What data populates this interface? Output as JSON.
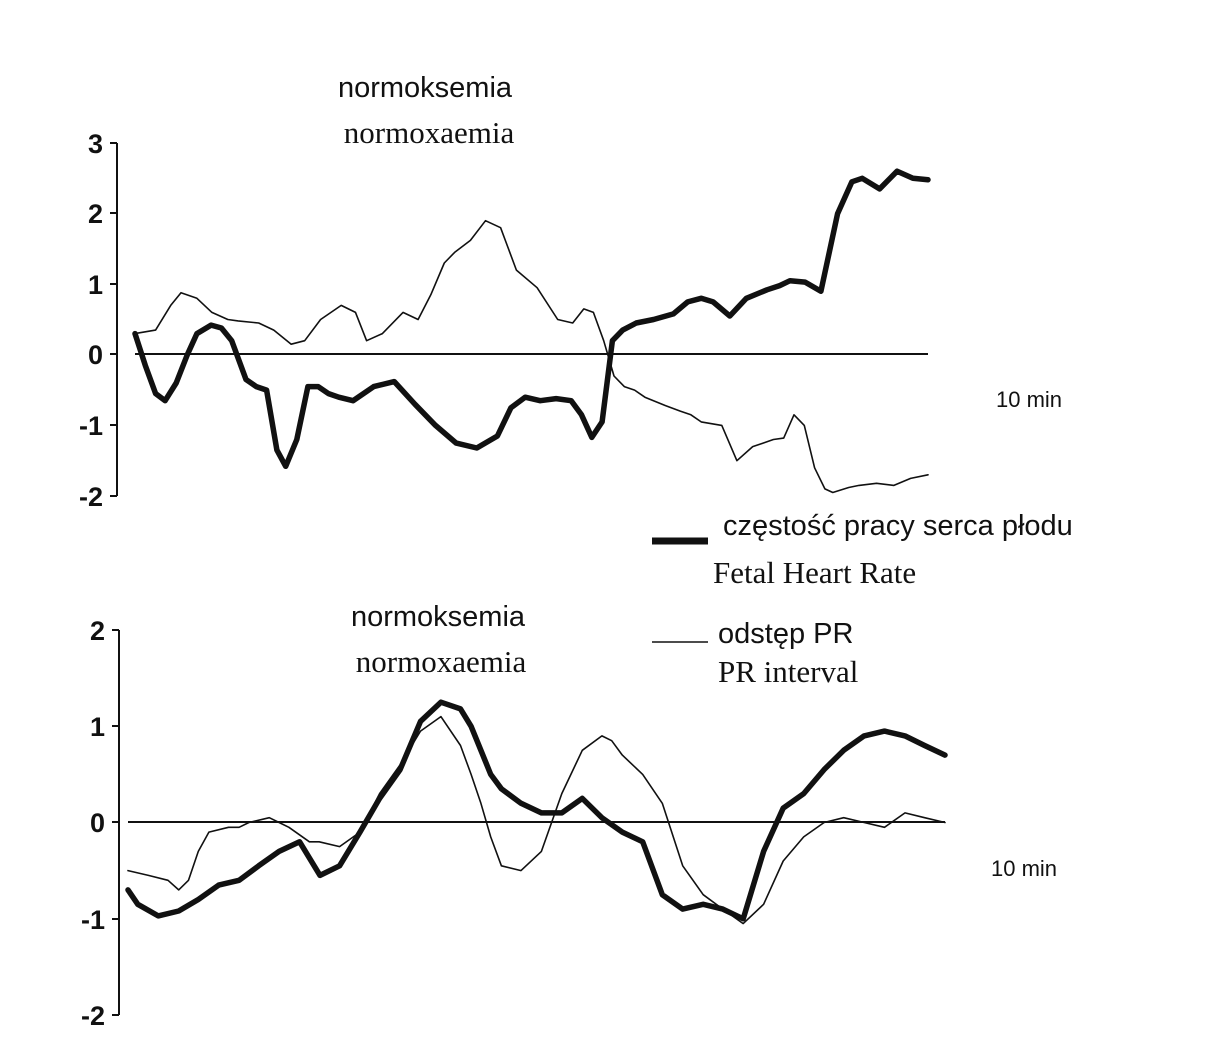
{
  "legend": {
    "fhr_pl": "częstość pracy serca płodu",
    "fhr_en": "Fetal Heart Rate",
    "pr_pl": "odstęp PR",
    "pr_en": "PR interval"
  },
  "chart_data": [
    {
      "type": "line",
      "title_pl": "normoksemia",
      "title_en": "normoxaemia",
      "duration_label": "10 min",
      "ylim": [
        -2,
        3
      ],
      "yticks": [
        "3",
        "2",
        "1",
        "0",
        "-1",
        "-2"
      ],
      "xlim": [
        0,
        10
      ],
      "series": [
        {
          "name": "Fetal Heart Rate",
          "style": "thick",
          "x": [
            0,
            0.13,
            0.26,
            0.38,
            0.52,
            0.66,
            0.78,
            0.96,
            1.09,
            1.22,
            1.4,
            1.53,
            1.66,
            1.79,
            1.9,
            2.04,
            2.18,
            2.31,
            2.44,
            2.57,
            2.75,
            3.01,
            3.27,
            3.53,
            3.79,
            4.05,
            4.31,
            4.57,
            4.74,
            4.92,
            5.11,
            5.31,
            5.5,
            5.63,
            5.76,
            5.89,
            6.02,
            6.15,
            6.32,
            6.54,
            6.79,
            6.97,
            7.14,
            7.29,
            7.5,
            7.71,
            7.97,
            8.13,
            8.26,
            8.45,
            8.65,
            8.86,
            9.04,
            9.17,
            9.39,
            9.61,
            9.81,
            10
          ],
          "values": [
            0.3,
            -0.15,
            -0.55,
            -0.65,
            -0.4,
            0.0,
            0.3,
            0.42,
            0.38,
            0.2,
            -0.35,
            -0.45,
            -0.5,
            -1.35,
            -1.58,
            -1.2,
            -0.45,
            -0.45,
            -0.55,
            -0.6,
            -0.65,
            -0.45,
            -0.38,
            -0.7,
            -1.0,
            -1.25,
            -1.32,
            -1.15,
            -0.75,
            -0.6,
            -0.65,
            -0.62,
            -0.65,
            -0.85,
            -1.17,
            -0.95,
            0.2,
            0.35,
            0.45,
            0.5,
            0.58,
            0.75,
            0.8,
            0.75,
            0.55,
            0.8,
            0.92,
            0.98,
            1.05,
            1.03,
            0.9,
            2.0,
            2.45,
            2.5,
            2.35,
            2.6,
            2.5,
            2.48
          ]
        },
        {
          "name": "PR interval",
          "style": "thin",
          "x": [
            0,
            0.26,
            0.45,
            0.58,
            0.78,
            0.97,
            1.17,
            1.3,
            1.56,
            1.75,
            1.97,
            2.14,
            2.34,
            2.6,
            2.78,
            2.92,
            3.12,
            3.38,
            3.57,
            3.73,
            3.9,
            4.03,
            4.23,
            4.42,
            4.61,
            4.81,
            5.07,
            5.33,
            5.52,
            5.66,
            5.78,
            5.91,
            6.04,
            6.17,
            6.3,
            6.43,
            6.69,
            6.88,
            7.01,
            7.14,
            7.4,
            7.59,
            7.79,
            7.92,
            8.05,
            8.18,
            8.31,
            8.44,
            8.57,
            8.7,
            8.8,
            9.0,
            9.13,
            9.35,
            9.57,
            9.78,
            10
          ],
          "values": [
            0.3,
            0.35,
            0.7,
            0.88,
            0.8,
            0.6,
            0.5,
            0.48,
            0.45,
            0.35,
            0.15,
            0.2,
            0.5,
            0.7,
            0.6,
            0.2,
            0.3,
            0.6,
            0.5,
            0.85,
            1.3,
            1.45,
            1.62,
            1.9,
            1.8,
            1.2,
            0.95,
            0.5,
            0.45,
            0.65,
            0.6,
            0.2,
            -0.3,
            -0.45,
            -0.5,
            -0.6,
            -0.72,
            -0.8,
            -0.85,
            -0.95,
            -1.0,
            -1.5,
            -1.3,
            -1.25,
            -1.2,
            -1.18,
            -0.85,
            -1.0,
            -1.6,
            -1.9,
            -1.95,
            -1.88,
            -1.85,
            -1.82,
            -1.85,
            -1.75,
            -1.7
          ]
        }
      ]
    },
    {
      "type": "line",
      "title_pl": "normoksemia",
      "title_en": "normoxaemia",
      "duration_label": "10 min",
      "ylim": [
        -2,
        2
      ],
      "yticks": [
        "2",
        "1",
        "0",
        "-1",
        "-2"
      ],
      "xlim": [
        0,
        10
      ],
      "series": [
        {
          "name": "Fetal Heart Rate",
          "style": "thick",
          "x": [
            0,
            0.12,
            0.37,
            0.62,
            0.86,
            1.11,
            1.36,
            1.6,
            1.85,
            2.1,
            2.35,
            2.59,
            2.84,
            3.08,
            3.33,
            3.58,
            3.83,
            4.07,
            4.2,
            4.32,
            4.44,
            4.57,
            4.81,
            5.06,
            5.31,
            5.56,
            5.8,
            6.05,
            6.3,
            6.54,
            6.79,
            7.04,
            7.28,
            7.53,
            7.78,
            8.02,
            8.27,
            8.52,
            8.76,
            9.01,
            9.26,
            9.51,
            9.75,
            10
          ],
          "values": [
            -0.7,
            -0.85,
            -0.97,
            -0.92,
            -0.8,
            -0.65,
            -0.6,
            -0.45,
            -0.3,
            -0.2,
            -0.55,
            -0.45,
            -0.1,
            0.25,
            0.55,
            1.05,
            1.25,
            1.18,
            1.0,
            0.75,
            0.5,
            0.35,
            0.2,
            0.1,
            0.1,
            0.25,
            0.05,
            -0.1,
            -0.2,
            -0.75,
            -0.9,
            -0.85,
            -0.9,
            -1.0,
            -0.3,
            0.15,
            0.3,
            0.55,
            0.75,
            0.9,
            0.95,
            0.9,
            0.8,
            0.7
          ]
        },
        {
          "name": "PR interval",
          "style": "thin",
          "x": [
            0,
            0.25,
            0.49,
            0.62,
            0.74,
            0.86,
            0.99,
            1.23,
            1.36,
            1.48,
            1.73,
            1.85,
            1.97,
            2.22,
            2.34,
            2.59,
            2.84,
            3.08,
            3.33,
            3.58,
            3.83,
            4.07,
            4.2,
            4.32,
            4.44,
            4.57,
            4.81,
            5.06,
            5.31,
            5.56,
            5.8,
            5.92,
            6.05,
            6.3,
            6.54,
            6.79,
            7.04,
            7.28,
            7.53,
            7.78,
            8.02,
            8.27,
            8.52,
            8.76,
            9.01,
            9.26,
            9.51,
            9.75,
            10
          ],
          "values": [
            -0.5,
            -0.55,
            -0.6,
            -0.7,
            -0.6,
            -0.3,
            -0.1,
            -0.05,
            -0.05,
            0.0,
            0.05,
            0.0,
            -0.05,
            -0.2,
            -0.2,
            -0.25,
            -0.1,
            0.3,
            0.6,
            0.95,
            1.1,
            0.8,
            0.5,
            0.2,
            -0.15,
            -0.45,
            -0.5,
            -0.3,
            0.3,
            0.75,
            0.9,
            0.85,
            0.7,
            0.5,
            0.2,
            -0.45,
            -0.75,
            -0.9,
            -1.05,
            -0.85,
            -0.4,
            -0.15,
            0.0,
            0.05,
            0.0,
            -0.05,
            0.1,
            0.05,
            0.0
          ]
        }
      ]
    }
  ]
}
